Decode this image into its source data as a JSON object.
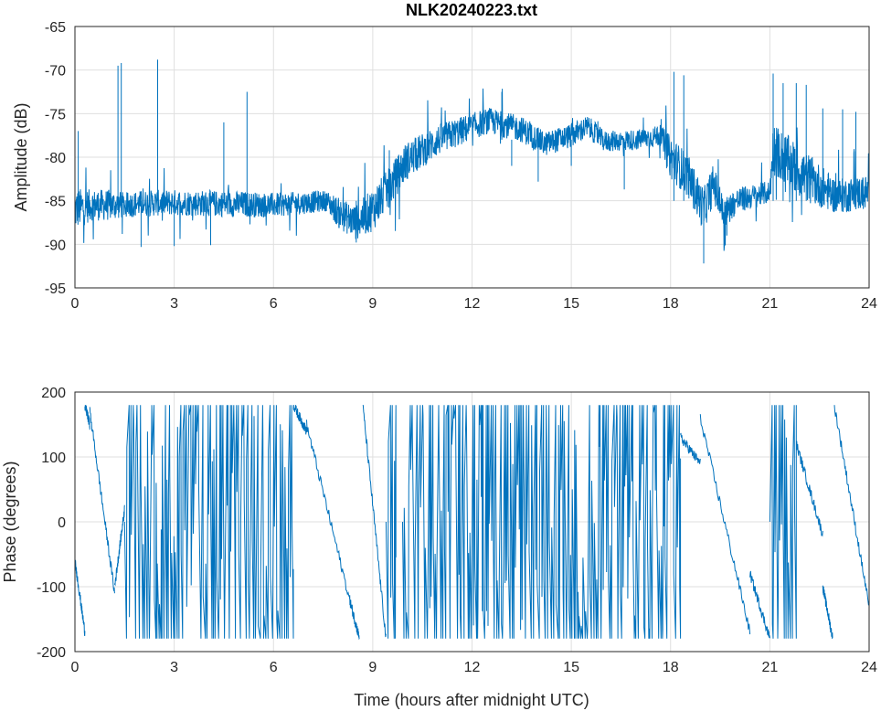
{
  "chart_data": [
    {
      "type": "line",
      "title": "NLK20240223.txt",
      "xlabel": "",
      "ylabel": "Amplitude (dB)",
      "xlim": [
        0,
        24
      ],
      "ylim": [
        -95,
        -65
      ],
      "xticks": [
        "0",
        "3",
        "6",
        "9",
        "12",
        "15",
        "18",
        "21",
        "24"
      ],
      "yticks": [
        "-65",
        "-70",
        "-75",
        "-80",
        "-85",
        "-90",
        "-95"
      ],
      "grid": true,
      "color": "#0072BD",
      "trend": [
        [
          0,
          -86,
          2.5
        ],
        [
          0.5,
          -85.5,
          1.8
        ],
        [
          1.0,
          -85.5,
          1.8
        ],
        [
          1.5,
          -85.5,
          1.5
        ],
        [
          2,
          -85.3,
          1.5
        ],
        [
          3,
          -85.2,
          1.5
        ],
        [
          4,
          -85.3,
          1.5
        ],
        [
          5,
          -85.4,
          1.5
        ],
        [
          6,
          -85.5,
          1.4
        ],
        [
          7,
          -85.2,
          1.3
        ],
        [
          7.6,
          -85,
          1.2
        ],
        [
          8,
          -86.5,
          1.8
        ],
        [
          8.5,
          -87.5,
          2
        ],
        [
          9,
          -86,
          2.5
        ],
        [
          9.5,
          -83.5,
          2.3
        ],
        [
          10,
          -80.5,
          2.2
        ],
        [
          11,
          -78,
          1.8
        ],
        [
          12,
          -76.5,
          1.6
        ],
        [
          12.5,
          -75.8,
          1.5
        ],
        [
          13.5,
          -76.8,
          1.5
        ],
        [
          14.2,
          -78.5,
          1.4
        ],
        [
          15,
          -77.5,
          1.4
        ],
        [
          15.5,
          -76.5,
          1.3
        ],
        [
          16,
          -78.2,
          1.2
        ],
        [
          17,
          -78,
          1.2
        ],
        [
          17.7,
          -77.5,
          1.2
        ],
        [
          18,
          -80,
          2.5
        ],
        [
          18.5,
          -82,
          2.5
        ],
        [
          19,
          -86,
          2.5
        ],
        [
          19.3,
          -83,
          2.3
        ],
        [
          19.6,
          -86.5,
          1.8
        ],
        [
          20,
          -85,
          1.5
        ],
        [
          21,
          -84,
          1.3
        ],
        [
          21.1,
          -79,
          3
        ],
        [
          22,
          -82,
          3
        ],
        [
          23,
          -84.5,
          2
        ],
        [
          24,
          -84,
          2
        ]
      ],
      "spikes": [
        [
          0.1,
          -77
        ],
        [
          1.3,
          -69.5
        ],
        [
          1.4,
          -69.2
        ],
        [
          2.0,
          -90.3
        ],
        [
          2.5,
          -68.8
        ],
        [
          3.0,
          -90.2
        ],
        [
          4.1,
          -90.1
        ],
        [
          4.5,
          -76
        ],
        [
          5.2,
          -72.5
        ],
        [
          8.5,
          -89.8
        ],
        [
          9.5,
          -79.2
        ],
        [
          12.9,
          -72.5
        ],
        [
          13.2,
          -81
        ],
        [
          14.0,
          -82.8
        ],
        [
          15.0,
          -81
        ],
        [
          16.6,
          -83.7
        ],
        [
          17.6,
          -76.5
        ],
        [
          18.1,
          -70.2
        ],
        [
          18.4,
          -70.6
        ],
        [
          19.0,
          -92.2
        ],
        [
          19.7,
          -89
        ],
        [
          21.1,
          -70.4
        ],
        [
          21.4,
          -71.5
        ],
        [
          21.8,
          -71.5
        ],
        [
          22.1,
          -71.7
        ],
        [
          22.6,
          -74.4
        ],
        [
          23.2,
          -74.5
        ],
        [
          23.6,
          -74.8
        ],
        [
          24,
          -72.5
        ]
      ]
    },
    {
      "type": "line",
      "title": "",
      "xlabel": "Time (hours after midnight UTC)",
      "ylabel": "Phase (degrees)",
      "xlim": [
        0,
        24
      ],
      "ylim": [
        -200,
        200
      ],
      "xticks": [
        "0",
        "3",
        "6",
        "9",
        "12",
        "15",
        "18",
        "21",
        "24"
      ],
      "yticks": [
        "200",
        "100",
        "0",
        "-100",
        "-200"
      ],
      "grid": true,
      "color": "#0072BD",
      "drift_segments": [
        [
          0,
          0.3,
          -60,
          -170
        ],
        [
          0.3,
          0.45,
          180,
          150
        ],
        [
          0.45,
          1.2,
          170,
          -110
        ],
        [
          1.2,
          1.5,
          -100,
          20
        ],
        [
          6.6,
          7.0,
          180,
          140
        ],
        [
          7.0,
          8.3,
          150,
          -120
        ],
        [
          8.3,
          8.6,
          -120,
          -180
        ],
        [
          8.7,
          9.4,
          180,
          -180
        ],
        [
          18.3,
          18.9,
          130,
          90
        ],
        [
          18.9,
          20.4,
          160,
          -170
        ],
        [
          20.4,
          21.0,
          -80,
          -180
        ],
        [
          21.8,
          22.6,
          120,
          -20
        ],
        [
          22.6,
          22.9,
          -100,
          -180
        ],
        [
          22.95,
          24,
          180,
          -130
        ]
      ],
      "wrapping_intervals": [
        [
          1.5,
          6.6
        ],
        [
          9.4,
          9.7
        ],
        [
          9.9,
          18.3
        ],
        [
          21.0,
          21.8
        ]
      ]
    }
  ]
}
